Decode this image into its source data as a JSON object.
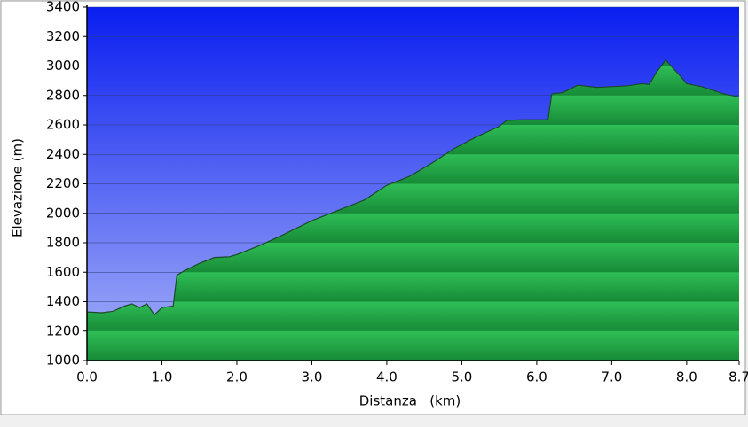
{
  "chart_data": {
    "type": "area",
    "x_label": "Distanza   (km)",
    "y_label": "Elevazione (m)",
    "x": [
      0.0,
      0.2,
      0.35,
      0.5,
      0.6,
      0.7,
      0.8,
      0.9,
      1.0,
      1.15,
      1.2,
      1.3,
      1.5,
      1.7,
      1.9,
      2.0,
      2.3,
      2.6,
      3.0,
      3.4,
      3.7,
      4.0,
      4.3,
      4.6,
      4.9,
      5.2,
      5.5,
      5.6,
      5.8,
      6.15,
      6.2,
      6.35,
      6.55,
      6.8,
      7.2,
      7.4,
      7.5,
      7.6,
      7.72,
      7.9,
      8.0,
      8.2,
      8.5,
      8.7
    ],
    "values": [
      1330,
      1325,
      1335,
      1370,
      1385,
      1360,
      1385,
      1310,
      1360,
      1370,
      1580,
      1610,
      1660,
      1700,
      1705,
      1720,
      1780,
      1850,
      1950,
      2030,
      2090,
      2190,
      2250,
      2340,
      2440,
      2520,
      2590,
      2630,
      2635,
      2635,
      2810,
      2820,
      2870,
      2855,
      2865,
      2880,
      2875,
      2960,
      3040,
      2940,
      2880,
      2860,
      2810,
      2790
    ],
    "color": "#22a444",
    "xlim": [
      0,
      8.7
    ],
    "xticks": [
      {
        "value": 0,
        "label": "0.0"
      },
      {
        "value": 1,
        "label": "1.0"
      },
      {
        "value": 2,
        "label": "2.0"
      },
      {
        "value": 3,
        "label": "3.0"
      },
      {
        "value": 4,
        "label": "4.0"
      },
      {
        "value": 5,
        "label": "5.0"
      },
      {
        "value": 6,
        "label": "6.0"
      },
      {
        "value": 7,
        "label": "7.0"
      },
      {
        "value": 8,
        "label": "8.0"
      },
      8.7
    ],
    "ylim": [
      1000,
      3400
    ],
    "yticks": [
      1000,
      1200,
      1400,
      1600,
      1800,
      2000,
      2200,
      2400,
      2600,
      2800,
      3000,
      3200,
      3400
    ],
    "grid": true
  }
}
